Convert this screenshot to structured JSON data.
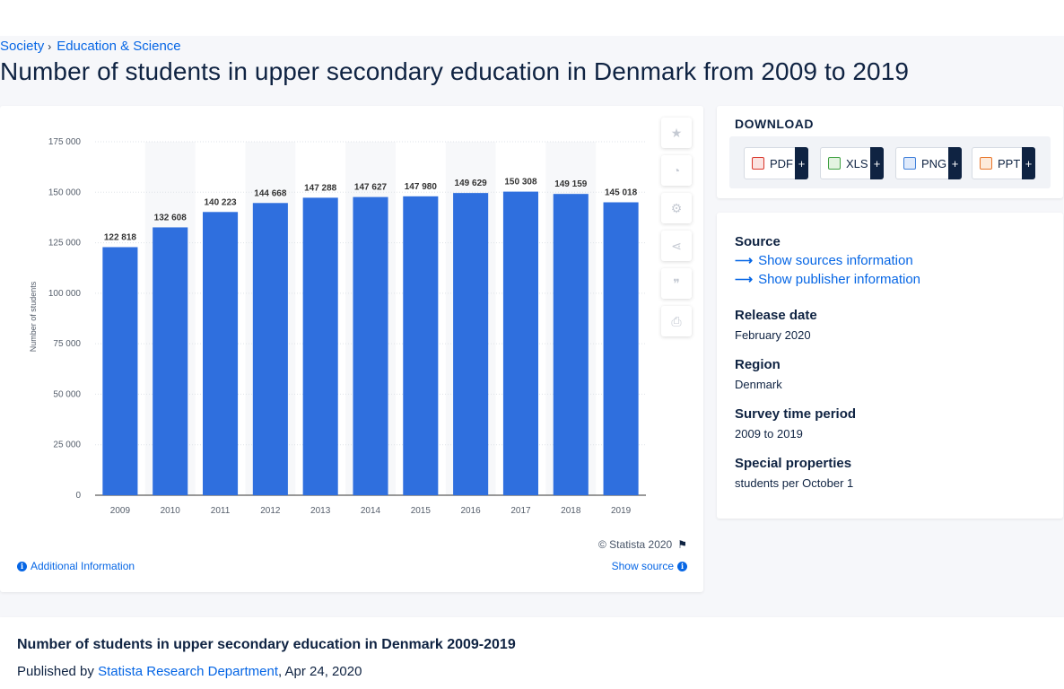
{
  "breadcrumb": [
    "Society",
    "Education & Science"
  ],
  "page_title": "Number of students in upper secondary education in Denmark from 2009 to 2019",
  "chart_data": {
    "type": "bar",
    "categories": [
      "2009",
      "2010",
      "2011",
      "2012",
      "2013",
      "2014",
      "2015",
      "2016",
      "2017",
      "2018",
      "2019"
    ],
    "values": [
      122818,
      132608,
      140223,
      144668,
      147288,
      147627,
      147980,
      149629,
      150308,
      149159,
      145018
    ],
    "value_labels": [
      "122 818",
      "132 608",
      "140 223",
      "144 668",
      "147 288",
      "147 627",
      "147 980",
      "149 629",
      "150 308",
      "149 159",
      "145 018"
    ],
    "ylabel": "Number of students",
    "ylim": [
      0,
      175000
    ],
    "yticks": [
      0,
      25000,
      50000,
      75000,
      100000,
      125000,
      150000,
      175000
    ],
    "ytick_labels": [
      "0",
      "25 000",
      "50 000",
      "75 000",
      "100 000",
      "125 000",
      "150 000",
      "175 000"
    ],
    "bar_color": "#2f6fde",
    "grid": true
  },
  "tools": [
    {
      "icon": "star-icon",
      "glyph": "★"
    },
    {
      "icon": "bell-icon",
      "glyph": "🔔"
    },
    {
      "icon": "gear-icon",
      "glyph": "⚙"
    },
    {
      "icon": "share-icon",
      "glyph": "⋖"
    },
    {
      "icon": "quote-icon",
      "glyph": "❞"
    },
    {
      "icon": "print-icon",
      "glyph": "⎙"
    }
  ],
  "copyright": "© Statista 2020",
  "additional_info": "Additional Information",
  "show_source": "Show source",
  "download": {
    "title": "DOWNLOAD",
    "formats": [
      "PDF",
      "XLS",
      "PNG",
      "PPT"
    ],
    "plus": "+"
  },
  "meta": {
    "source_label": "Source",
    "show_sources": "Show sources information",
    "show_publisher": "Show publisher information",
    "release_label": "Release date",
    "release_value": "February 2020",
    "region_label": "Region",
    "region_value": "Denmark",
    "survey_label": "Survey time period",
    "survey_value": "2009 to 2019",
    "special_label": "Special properties",
    "special_value": "students per October 1"
  },
  "bottom": {
    "title": "Number of students in upper secondary education in Denmark 2009-2019",
    "published_prefix": "Published by",
    "publisher": "Statista Research Department",
    "date": ", Apr 24, 2020"
  },
  "colors": {
    "accent": "#0666e5",
    "text": "#0f2342",
    "pdf": "#d9362b",
    "xls": "#3fa142",
    "png": "#3f7fd9",
    "ppt": "#e8762b"
  }
}
